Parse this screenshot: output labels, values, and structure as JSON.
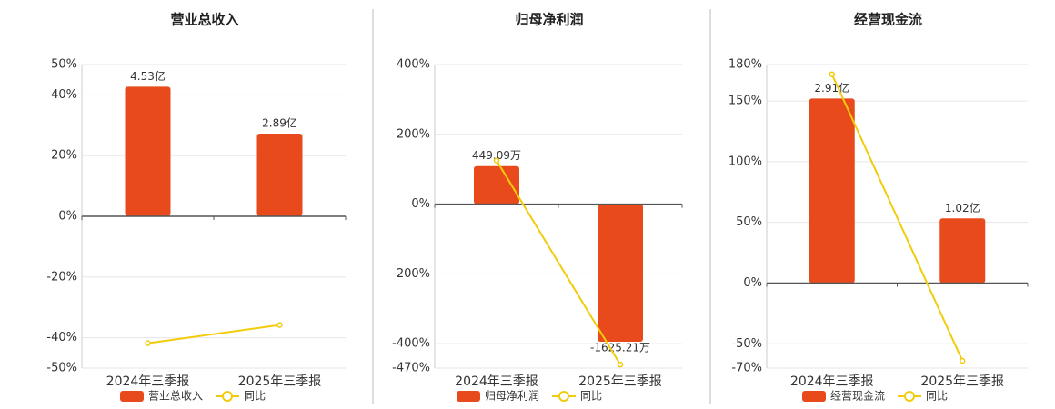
{
  "chart_data": [
    {
      "type": "bar",
      "title": "营业总收入",
      "categories": [
        "2024年三季报",
        "2025年三季报"
      ],
      "series": [
        {
          "name": "营业总收入",
          "color": "#e84a1c",
          "values": [
            4.53,
            2.89
          ],
          "value_labels": [
            "4.53亿",
            "2.89亿"
          ],
          "axis": "y2"
        },
        {
          "name": "同比",
          "color": "#f2cc0c",
          "type": "line",
          "values": [
            -41.8,
            -35.8
          ]
        }
      ],
      "ylim": [
        -50,
        50
      ],
      "yticks": [
        {
          "value": -50,
          "label": "-50%"
        },
        {
          "value": -40,
          "label": "-40%"
        },
        {
          "value": -20,
          "label": "-20%"
        },
        {
          "value": 0,
          "label": "0%"
        },
        {
          "value": 20,
          "label": "20%"
        },
        {
          "value": 40,
          "label": "40%"
        },
        {
          "value": 50,
          "label": "50%"
        }
      ],
      "y2lim": [
        -5.305,
        5.305
      ],
      "grid": true,
      "legend": "bottom"
    },
    {
      "type": "bar",
      "title": "归母净利润",
      "categories": [
        "2024年三季报",
        "2025年三季报"
      ],
      "series": [
        {
          "name": "归母净利润",
          "color": "#e84a1c",
          "values": [
            449.09,
            -1625.21
          ],
          "value_labels": [
            "449.09万",
            "-1625.21万"
          ],
          "axis": "y2"
        },
        {
          "name": "同比",
          "color": "#f2cc0c",
          "type": "line",
          "values": [
            125,
            -460
          ]
        }
      ],
      "ylim": [
        -470,
        400
      ],
      "yticks": [
        {
          "value": -470,
          "label": "-470%"
        },
        {
          "value": -400,
          "label": "-400%"
        },
        {
          "value": -200,
          "label": "-200%"
        },
        {
          "value": 0,
          "label": "0%"
        },
        {
          "value": 200,
          "label": "200%"
        },
        {
          "value": 400,
          "label": "400%"
        }
      ],
      "y2lim": [
        -1936,
        1648
      ],
      "grid": true,
      "legend": "bottom"
    },
    {
      "type": "bar",
      "title": "经营现金流",
      "categories": [
        "2024年三季报",
        "2025年三季报"
      ],
      "series": [
        {
          "name": "经营现金流",
          "color": "#e84a1c",
          "values": [
            2.91,
            1.02
          ],
          "value_labels": [
            "2.91亿",
            "1.02亿"
          ],
          "axis": "y2"
        },
        {
          "name": "同比",
          "color": "#f2cc0c",
          "type": "line",
          "values": [
            172,
            -64
          ]
        }
      ],
      "ylim": [
        -70,
        180
      ],
      "yticks": [
        {
          "value": -70,
          "label": "-70%"
        },
        {
          "value": -50,
          "label": "-50%"
        },
        {
          "value": 0,
          "label": "0%"
        },
        {
          "value": 50,
          "label": "50%"
        },
        {
          "value": 100,
          "label": "100%"
        },
        {
          "value": 150,
          "label": "150%"
        },
        {
          "value": 180,
          "label": "180%"
        }
      ],
      "y2lim": [
        -1.34,
        3.445
      ],
      "grid": true,
      "legend": "bottom"
    }
  ]
}
